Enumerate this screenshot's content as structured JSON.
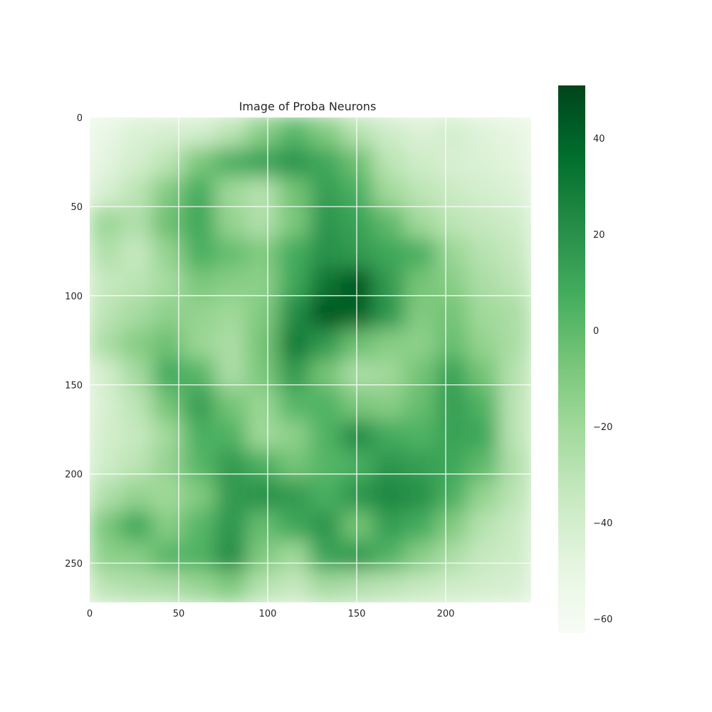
{
  "chart_data": {
    "type": "heatmap",
    "title": "Image of Proba Neurons",
    "xlabel": "",
    "ylabel": "",
    "image_size": [
      248,
      272
    ],
    "xlim": [
      0,
      247
    ],
    "ylim": [
      0,
      271
    ],
    "x_ticks": [
      0,
      50,
      100,
      150,
      200
    ],
    "y_ticks": [
      0,
      50,
      100,
      150,
      200,
      250
    ],
    "grid": true,
    "colormap": "Greens",
    "colormap_stops": [
      "#f7fcf5",
      "#e5f5e0",
      "#c7e9c0",
      "#a1d99b",
      "#74c476",
      "#41ab5d",
      "#238b45",
      "#006d2c",
      "#00441b"
    ],
    "colorbar": {
      "range": [
        -63,
        51
      ],
      "ticks": [
        40,
        20,
        0,
        -20,
        -40,
        -60
      ],
      "tick_labels": [
        "40",
        "20",
        "0",
        "−20",
        "−40",
        "−60"
      ]
    },
    "description_grid": {
      "rows": 16,
      "cols": 14,
      "values": [
        [
          -52,
          -44,
          -42,
          -40,
          -30,
          -12,
          2,
          -10,
          -28,
          -38,
          -44,
          -40,
          -46,
          -50
        ],
        [
          -48,
          -40,
          -30,
          -8,
          6,
          12,
          18,
          10,
          -4,
          -30,
          -38,
          -42,
          -44,
          -48
        ],
        [
          -42,
          -30,
          -10,
          8,
          -20,
          -28,
          -6,
          14,
          6,
          -20,
          -30,
          -36,
          -40,
          -44
        ],
        [
          -18,
          -26,
          -4,
          10,
          -16,
          -26,
          -8,
          18,
          12,
          0,
          -20,
          -30,
          -34,
          -38
        ],
        [
          -26,
          -34,
          -16,
          6,
          -2,
          -10,
          8,
          20,
          16,
          10,
          6,
          -18,
          -28,
          -34
        ],
        [
          -34,
          -30,
          -22,
          -8,
          -12,
          -14,
          10,
          34,
          44,
          16,
          -6,
          -12,
          -24,
          -30
        ],
        [
          -30,
          -22,
          -14,
          -16,
          -20,
          -10,
          22,
          44,
          40,
          18,
          -10,
          -6,
          -20,
          -24
        ],
        [
          -24,
          -12,
          -4,
          -18,
          -24,
          -6,
          30,
          16,
          -4,
          -12,
          -14,
          -2,
          -16,
          -24
        ],
        [
          -40,
          -22,
          8,
          2,
          -24,
          -8,
          16,
          -6,
          -24,
          -20,
          -6,
          12,
          -6,
          -28
        ],
        [
          -42,
          -30,
          -6,
          14,
          -6,
          -18,
          2,
          4,
          -8,
          -12,
          -2,
          14,
          4,
          -30
        ],
        [
          -40,
          -34,
          -20,
          6,
          4,
          -20,
          -14,
          4,
          22,
          8,
          4,
          12,
          10,
          -30
        ],
        [
          -38,
          -30,
          -16,
          2,
          16,
          6,
          -6,
          2,
          6,
          18,
          14,
          10,
          0,
          -26
        ],
        [
          -26,
          -16,
          -20,
          -10,
          16,
          20,
          16,
          6,
          18,
          24,
          20,
          6,
          -16,
          -30
        ],
        [
          -8,
          10,
          -12,
          2,
          18,
          -2,
          10,
          18,
          -6,
          14,
          8,
          -10,
          -28,
          -36
        ],
        [
          -14,
          -12,
          2,
          4,
          22,
          -10,
          -20,
          12,
          16,
          4,
          -12,
          -24,
          -34,
          -38
        ],
        [
          -30,
          -26,
          -24,
          -18,
          -10,
          -28,
          -34,
          -22,
          -26,
          -30,
          -34,
          -38,
          -40,
          -42
        ]
      ]
    }
  }
}
